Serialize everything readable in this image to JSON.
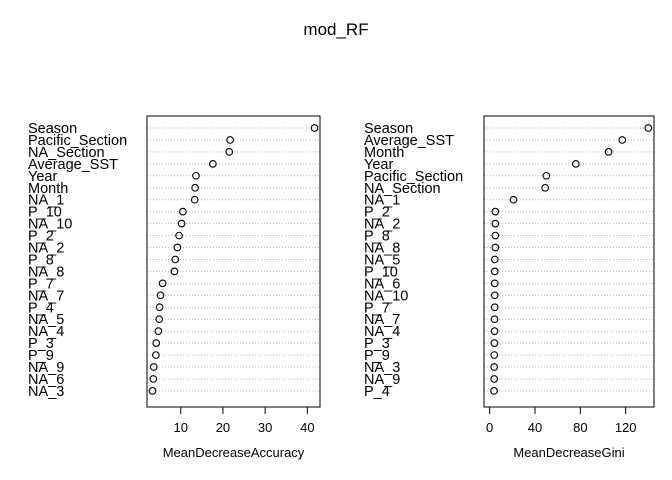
{
  "chart_data": {
    "title": "mod_RF",
    "type": "scatter",
    "panels": [
      {
        "xlabel": "MeanDecreaseAccuracy",
        "xlim": [
          2,
          43
        ],
        "xticks": [
          10,
          20,
          30,
          40
        ],
        "grid": "dotted horizontal",
        "points": [
          {
            "label": "Season",
            "value": 41.7
          },
          {
            "label": "Pacific_Section",
            "value": 21.7
          },
          {
            "label": "NA_Section",
            "value": 21.5
          },
          {
            "label": "Average_SST",
            "value": 17.6
          },
          {
            "label": "Year",
            "value": 13.6
          },
          {
            "label": "Month",
            "value": 13.4
          },
          {
            "label": "NA_1",
            "value": 13.3
          },
          {
            "label": "P_10",
            "value": 10.5
          },
          {
            "label": "NA_10",
            "value": 10.2
          },
          {
            "label": "P_2",
            "value": 9.6
          },
          {
            "label": "NA_2",
            "value": 9.2
          },
          {
            "label": "P_8",
            "value": 8.7
          },
          {
            "label": "NA_8",
            "value": 8.5
          },
          {
            "label": "P_7",
            "value": 5.7
          },
          {
            "label": "NA_7",
            "value": 5.2
          },
          {
            "label": "P_4",
            "value": 5.0
          },
          {
            "label": "NA_5",
            "value": 4.9
          },
          {
            "label": "NA_4",
            "value": 4.7
          },
          {
            "label": "P_3",
            "value": 4.2
          },
          {
            "label": "P_9",
            "value": 4.1
          },
          {
            "label": "NA_9",
            "value": 3.6
          },
          {
            "label": "NA_6",
            "value": 3.5
          },
          {
            "label": "NA_3",
            "value": 3.3
          }
        ]
      },
      {
        "xlabel": "MeanDecreaseGini",
        "xlim": [
          -5,
          145
        ],
        "xticks": [
          0,
          40,
          80,
          120
        ],
        "grid": "dotted horizontal",
        "points": [
          {
            "label": "Season",
            "value": 140
          },
          {
            "label": "Average_SST",
            "value": 117
          },
          {
            "label": "Month",
            "value": 105
          },
          {
            "label": "Year",
            "value": 76
          },
          {
            "label": "Pacific_Section",
            "value": 50
          },
          {
            "label": "NA_Section",
            "value": 49
          },
          {
            "label": "NA_1",
            "value": 21
          },
          {
            "label": "P_2",
            "value": 5
          },
          {
            "label": "NA_2",
            "value": 5
          },
          {
            "label": "P_8",
            "value": 5
          },
          {
            "label": "NA_8",
            "value": 5
          },
          {
            "label": "NA_5",
            "value": 4.5
          },
          {
            "label": "P_10",
            "value": 4.5
          },
          {
            "label": "NA_6",
            "value": 4.5
          },
          {
            "label": "NA_10",
            "value": 4.5
          },
          {
            "label": "P_7",
            "value": 4.5
          },
          {
            "label": "NA_7",
            "value": 4.3
          },
          {
            "label": "NA_4",
            "value": 4.3
          },
          {
            "label": "P_3",
            "value": 4.2
          },
          {
            "label": "P_9",
            "value": 4.1
          },
          {
            "label": "NA_3",
            "value": 4.0
          },
          {
            "label": "NA_9",
            "value": 4.0
          },
          {
            "label": "P_4",
            "value": 3.9
          }
        ]
      }
    ]
  }
}
